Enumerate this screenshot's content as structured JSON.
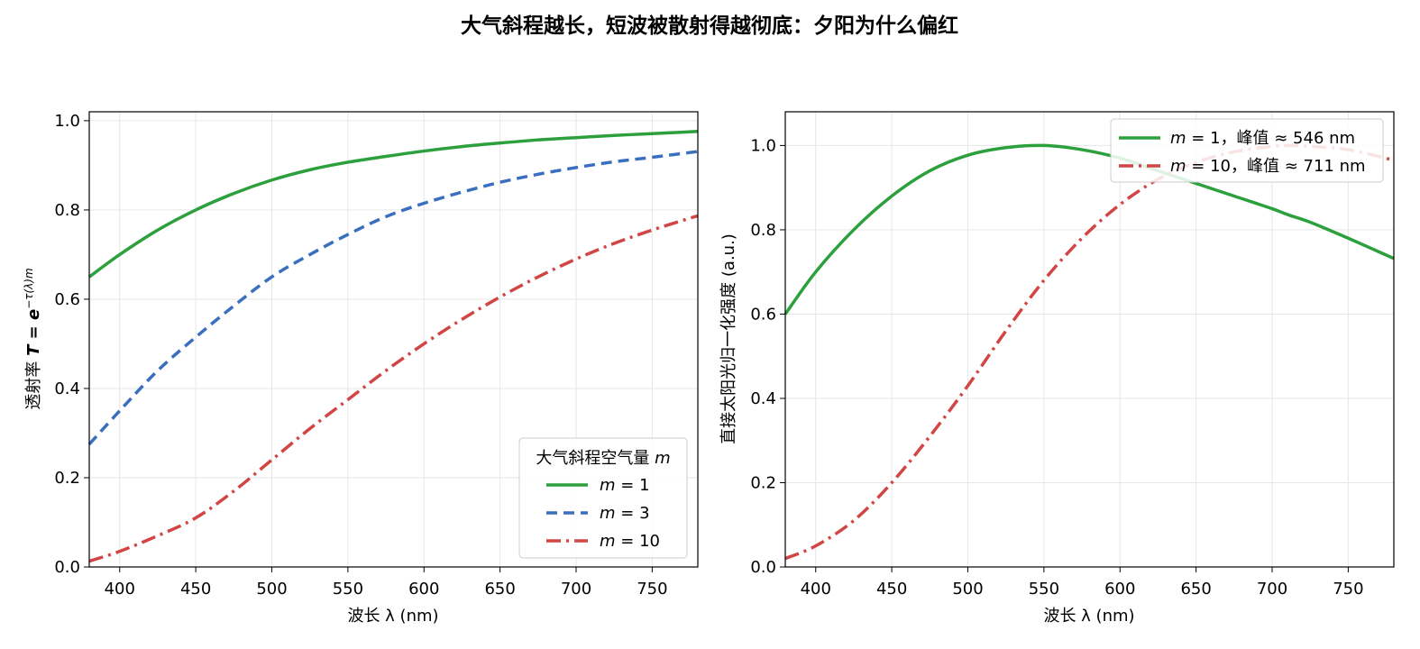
{
  "suptitle": "大气斜程越长，短波被散射得越彻底：夕阳为什么偏红",
  "chart_data": [
    {
      "type": "line",
      "xlabel": "波长 λ (nm)",
      "ylabel": "透射率 T = e^{-τ(λ)m}",
      "ylabel_main": "透射率 ",
      "ylabel_formula": "T = e",
      "ylabel_exp": "−τ(λ)m",
      "xlim": [
        380,
        780
      ],
      "ylim": [
        0,
        1.02
      ],
      "xticks": [
        "400",
        "450",
        "500",
        "550",
        "600",
        "650",
        "700",
        "750"
      ],
      "yticks": [
        "0.0",
        "0.2",
        "0.4",
        "0.6",
        "0.8",
        "1.0"
      ],
      "grid": true,
      "legend": {
        "title": "大气斜程空气量 m",
        "title_text": "大气斜程空气量 ",
        "title_var": "m",
        "placement": "lower-right"
      },
      "x": [
        380,
        400,
        425,
        450,
        475,
        500,
        525,
        550,
        575,
        600,
        625,
        650,
        675,
        700,
        725,
        750,
        780
      ],
      "series": [
        {
          "name": "m = 1",
          "var": "m",
          "eq": " = 1",
          "color": "#2ca03c",
          "dash": "",
          "values": [
            0.65,
            0.7,
            0.755,
            0.8,
            0.837,
            0.867,
            0.89,
            0.907,
            0.92,
            0.932,
            0.942,
            0.95,
            0.957,
            0.962,
            0.967,
            0.971,
            0.976
          ]
        },
        {
          "name": "m = 3",
          "var": "m",
          "eq": " = 3",
          "color": "#3a6fbf",
          "dash": "12,7",
          "values": [
            0.275,
            0.35,
            0.44,
            0.515,
            0.585,
            0.65,
            0.7,
            0.745,
            0.785,
            0.815,
            0.84,
            0.862,
            0.88,
            0.895,
            0.908,
            0.918,
            0.931
          ]
        },
        {
          "name": "m = 10",
          "var": "m",
          "eq": " = 10",
          "color": "#d24545",
          "dash": "16,6,3,6",
          "values": [
            0.013,
            0.035,
            0.07,
            0.11,
            0.17,
            0.24,
            0.31,
            0.375,
            0.44,
            0.5,
            0.555,
            0.605,
            0.65,
            0.69,
            0.725,
            0.755,
            0.787
          ]
        }
      ]
    },
    {
      "type": "line",
      "xlabel": "波长 λ (nm)",
      "ylabel": "直接太阳光归一化强度 (a.u.)",
      "xlim": [
        380,
        780
      ],
      "ylim": [
        0,
        1.08
      ],
      "xticks": [
        "400",
        "450",
        "500",
        "550",
        "600",
        "650",
        "700",
        "750"
      ],
      "yticks": [
        "0.0",
        "0.2",
        "0.4",
        "0.6",
        "0.8",
        "1.0"
      ],
      "grid": true,
      "legend": {
        "placement": "upper-right"
      },
      "x": [
        380,
        400,
        425,
        450,
        475,
        500,
        525,
        550,
        575,
        600,
        625,
        650,
        675,
        700,
        711,
        725,
        750,
        780
      ],
      "series": [
        {
          "name": "m = 1，峰值 ≈ 546 nm",
          "var": "m",
          "eq": " = 1，峰值 ≈ 546 nm",
          "color": "#2ca03c",
          "dash": "",
          "values": [
            0.6,
            0.7,
            0.8,
            0.88,
            0.94,
            0.977,
            0.995,
            1.0,
            0.99,
            0.97,
            0.94,
            0.91,
            0.88,
            0.85,
            0.835,
            0.818,
            0.78,
            0.732
          ]
        },
        {
          "name": "m = 10，峰值 ≈ 711 nm",
          "var": "m",
          "eq": " = 10，峰值 ≈ 711 nm",
          "color": "#d24545",
          "dash": "16,6,3,6",
          "values": [
            0.02,
            0.05,
            0.11,
            0.2,
            0.31,
            0.43,
            0.56,
            0.68,
            0.78,
            0.86,
            0.92,
            0.96,
            0.985,
            0.998,
            1.0,
            0.998,
            0.99,
            0.965
          ]
        }
      ]
    }
  ]
}
